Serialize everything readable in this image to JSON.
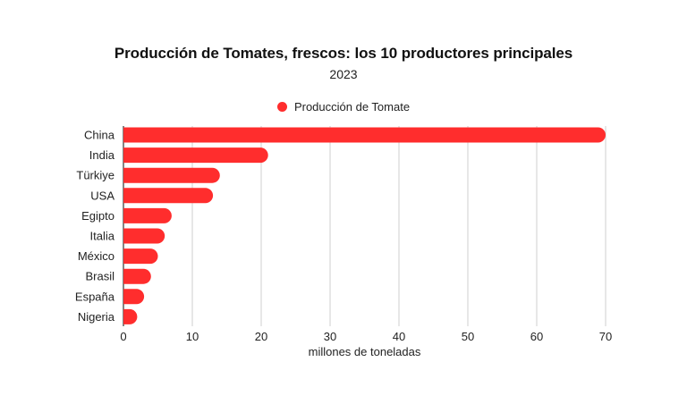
{
  "title": "Producción de Tomates, frescos: los 10 productores principales",
  "subtitle": "2023",
  "legend": {
    "label": "Producción de Tomate"
  },
  "colors": {
    "bar": "#ff2d2d",
    "grid": "#cfcfcf"
  },
  "chart_data": {
    "type": "bar",
    "orientation": "horizontal",
    "categories": [
      "China",
      "India",
      "Türkiye",
      "USA",
      "Egipto",
      "Italia",
      "México",
      "Brasil",
      "España",
      "Nigeria"
    ],
    "series": [
      {
        "name": "Producción de Tomate",
        "values": [
          70,
          21,
          14,
          13,
          7,
          6,
          5,
          4,
          3,
          2
        ]
      }
    ],
    "xlabel": "millones de toneladas",
    "ylabel": "",
    "xlim": [
      0,
      70
    ],
    "xticks": [
      0,
      10,
      20,
      30,
      40,
      50,
      60,
      70
    ],
    "grid": "vertical",
    "legend_position": "top-center"
  }
}
